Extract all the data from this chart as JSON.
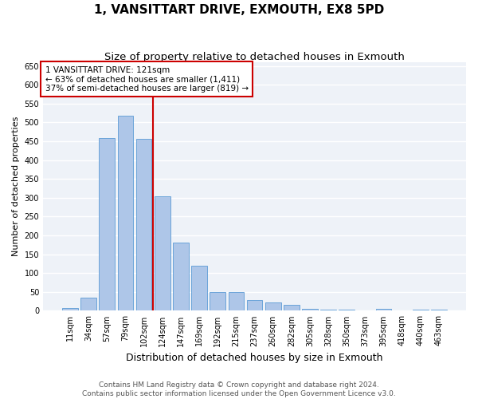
{
  "title": "1, VANSITTART DRIVE, EXMOUTH, EX8 5PD",
  "subtitle": "Size of property relative to detached houses in Exmouth",
  "xlabel": "Distribution of detached houses by size in Exmouth",
  "ylabel": "Number of detached properties",
  "categories": [
    "11sqm",
    "34sqm",
    "57sqm",
    "79sqm",
    "102sqm",
    "124sqm",
    "147sqm",
    "169sqm",
    "192sqm",
    "215sqm",
    "237sqm",
    "260sqm",
    "282sqm",
    "305sqm",
    "328sqm",
    "350sqm",
    "373sqm",
    "395sqm",
    "418sqm",
    "440sqm",
    "463sqm"
  ],
  "values": [
    7,
    35,
    458,
    517,
    457,
    305,
    181,
    119,
    50,
    50,
    29,
    22,
    15,
    5,
    2,
    2,
    1,
    6,
    1,
    2,
    2
  ],
  "bar_color": "#aec6e8",
  "bar_edge_color": "#5b9bd5",
  "vline_color": "#cc0000",
  "vline_x": 4.5,
  "annotation_text": "1 VANSITTART DRIVE: 121sqm\n← 63% of detached houses are smaller (1,411)\n37% of semi-detached houses are larger (819) →",
  "annotation_box_color": "#ffffff",
  "annotation_box_edge_color": "#cc0000",
  "ylim": [
    0,
    660
  ],
  "yticks": [
    0,
    50,
    100,
    150,
    200,
    250,
    300,
    350,
    400,
    450,
    500,
    550,
    600,
    650
  ],
  "background_color": "#eef2f8",
  "grid_color": "#ffffff",
  "footer_line1": "Contains HM Land Registry data © Crown copyright and database right 2024.",
  "footer_line2": "Contains public sector information licensed under the Open Government Licence v3.0.",
  "title_fontsize": 11,
  "subtitle_fontsize": 9.5,
  "xlabel_fontsize": 9,
  "ylabel_fontsize": 8,
  "tick_fontsize": 7,
  "annotation_fontsize": 7.5,
  "footer_fontsize": 6.5
}
